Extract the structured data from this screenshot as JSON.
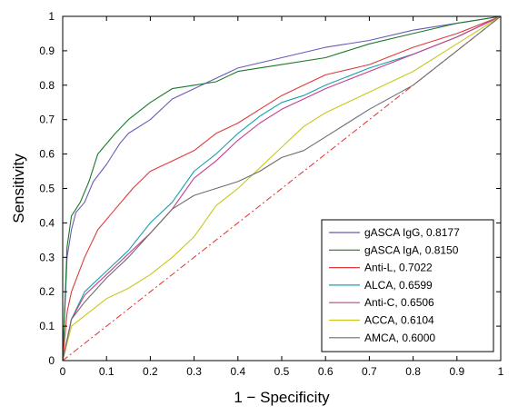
{
  "chart_data": {
    "type": "line",
    "xlabel": "1 − Specificity",
    "ylabel": "Sensitivity",
    "xlim": [
      0,
      1
    ],
    "ylim": [
      0,
      1
    ],
    "xticks": [
      "0",
      "0.1",
      "0.2",
      "0.3",
      "0.4",
      "0.5",
      "0.6",
      "0.7",
      "0.8",
      "0.9",
      "1"
    ],
    "yticks": [
      "0",
      "0.1",
      "0.2",
      "0.3",
      "0.4",
      "0.5",
      "0.6",
      "0.7",
      "0.8",
      "0.9",
      "1"
    ],
    "grid": false,
    "legend_position": "lower-right",
    "reference_line": {
      "style": "dash-dot",
      "color": "#e03030",
      "x": [
        0,
        1
      ],
      "y": [
        0,
        1
      ]
    },
    "series": [
      {
        "name": "gASCA IgG, 0.8177",
        "color": "#6a5ab8",
        "x": [
          0,
          0.01,
          0.02,
          0.03,
          0.05,
          0.07,
          0.1,
          0.13,
          0.15,
          0.2,
          0.25,
          0.3,
          0.35,
          0.4,
          0.5,
          0.6,
          0.7,
          0.8,
          0.9,
          1
        ],
        "y": [
          0,
          0.3,
          0.38,
          0.43,
          0.46,
          0.52,
          0.57,
          0.63,
          0.66,
          0.7,
          0.76,
          0.79,
          0.82,
          0.85,
          0.88,
          0.91,
          0.93,
          0.96,
          0.98,
          1
        ]
      },
      {
        "name": "gASCA IgA, 0.8150",
        "color": "#1a7a2a",
        "x": [
          0,
          0.01,
          0.02,
          0.04,
          0.06,
          0.08,
          0.12,
          0.15,
          0.2,
          0.25,
          0.3,
          0.35,
          0.4,
          0.5,
          0.6,
          0.7,
          0.8,
          0.9,
          1
        ],
        "y": [
          0,
          0.33,
          0.42,
          0.46,
          0.52,
          0.6,
          0.66,
          0.7,
          0.75,
          0.79,
          0.8,
          0.81,
          0.84,
          0.86,
          0.88,
          0.92,
          0.95,
          0.98,
          1
        ]
      },
      {
        "name": "Anti-L, 0.7022",
        "color": "#e03a3a",
        "x": [
          0,
          0.01,
          0.02,
          0.05,
          0.08,
          0.12,
          0.16,
          0.2,
          0.25,
          0.3,
          0.35,
          0.4,
          0.45,
          0.5,
          0.55,
          0.6,
          0.7,
          0.8,
          0.9,
          1
        ],
        "y": [
          0,
          0.14,
          0.2,
          0.3,
          0.38,
          0.44,
          0.5,
          0.55,
          0.58,
          0.61,
          0.66,
          0.69,
          0.73,
          0.77,
          0.8,
          0.83,
          0.86,
          0.91,
          0.95,
          1
        ]
      },
      {
        "name": "ALCA, 0.6599",
        "color": "#1aa0b0",
        "x": [
          0,
          0.02,
          0.05,
          0.1,
          0.15,
          0.2,
          0.25,
          0.3,
          0.35,
          0.4,
          0.45,
          0.5,
          0.55,
          0.6,
          0.7,
          0.8,
          0.9,
          1
        ],
        "y": [
          0,
          0.12,
          0.2,
          0.26,
          0.32,
          0.4,
          0.46,
          0.55,
          0.6,
          0.66,
          0.71,
          0.75,
          0.77,
          0.8,
          0.85,
          0.89,
          0.94,
          1
        ]
      },
      {
        "name": "Anti-C, 0.6506",
        "color": "#c83c8c",
        "x": [
          0,
          0.02,
          0.05,
          0.1,
          0.15,
          0.2,
          0.25,
          0.3,
          0.35,
          0.4,
          0.45,
          0.5,
          0.55,
          0.6,
          0.7,
          0.8,
          0.9,
          1
        ],
        "y": [
          0,
          0.12,
          0.19,
          0.25,
          0.31,
          0.37,
          0.44,
          0.53,
          0.58,
          0.64,
          0.69,
          0.73,
          0.76,
          0.79,
          0.84,
          0.89,
          0.94,
          1
        ]
      },
      {
        "name": "ACCA, 0.6104",
        "color": "#c8c81e",
        "x": [
          0,
          0.02,
          0.05,
          0.1,
          0.15,
          0.2,
          0.25,
          0.3,
          0.35,
          0.4,
          0.45,
          0.5,
          0.55,
          0.6,
          0.7,
          0.8,
          0.9,
          1
        ],
        "y": [
          0,
          0.1,
          0.13,
          0.18,
          0.21,
          0.25,
          0.3,
          0.36,
          0.45,
          0.5,
          0.56,
          0.62,
          0.68,
          0.72,
          0.78,
          0.84,
          0.92,
          1
        ]
      },
      {
        "name": "AMCA, 0.6000",
        "color": "#6e6e6e",
        "x": [
          0,
          0.02,
          0.05,
          0.1,
          0.15,
          0.2,
          0.25,
          0.3,
          0.35,
          0.4,
          0.45,
          0.5,
          0.55,
          0.6,
          0.65,
          0.7,
          0.8,
          0.9,
          1
        ],
        "y": [
          0,
          0.12,
          0.17,
          0.24,
          0.3,
          0.37,
          0.44,
          0.48,
          0.5,
          0.52,
          0.55,
          0.59,
          0.61,
          0.65,
          0.69,
          0.73,
          0.8,
          0.9,
          1
        ]
      }
    ]
  }
}
